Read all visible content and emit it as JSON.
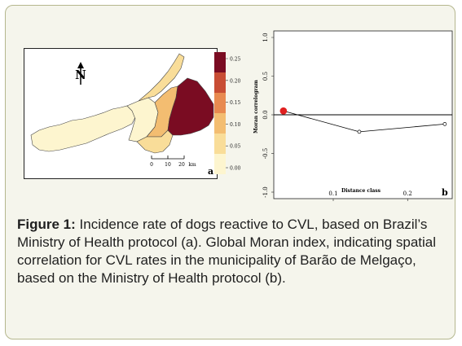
{
  "figure": {
    "caption_label": "Figure 1:",
    "caption_text": " Incidence rate of dogs reactive to CVL, based on Brazil’s Ministry of Health protocol (a). Global Moran index, indicating spatial correlation for CVL rates in the municipality of Barão de Melgaço, based on the Ministry of Health protocol (b)."
  },
  "panel_a": {
    "panel_letter": "a",
    "north_symbol": "N",
    "scale_ticks": [
      "0",
      "10",
      "20"
    ],
    "scale_unit": "km",
    "legend": {
      "values": [
        "0.25",
        "0.20",
        "0.15",
        "0.10",
        "0.05",
        "0.00"
      ],
      "colors": [
        "#7a0c22",
        "#c84d34",
        "#e88a50",
        "#f3bd71",
        "#f9dd99",
        "#fdf5cf"
      ]
    },
    "region_colors": {
      "highest": "#7a0c22",
      "medium": "#f3bd71",
      "low": "#f9dd99",
      "lowest": "#fdf5cf"
    }
  },
  "panel_b": {
    "panel_letter": "b",
    "ylabel": "Moran correlogram",
    "xlabel": "Distance class",
    "y_ticks": [
      "1.0",
      "0.5",
      "0.0",
      "-0.5",
      "-1.0"
    ],
    "x_ticks": [
      "0.1",
      "0.2"
    ],
    "highlight_color": "#e02020"
  },
  "chart_data": {
    "type": "line",
    "xlabel": "Distance class",
    "ylabel": "Moran correlogram",
    "ylim": [
      -1.0,
      1.0
    ],
    "xlim": [
      0.02,
      0.26
    ],
    "series": [
      {
        "x": [
          0.033,
          0.135,
          0.25
        ],
        "y": [
          0.05,
          -0.22,
          -0.12
        ],
        "significant": [
          true,
          false,
          false
        ]
      }
    ],
    "grid": false
  }
}
